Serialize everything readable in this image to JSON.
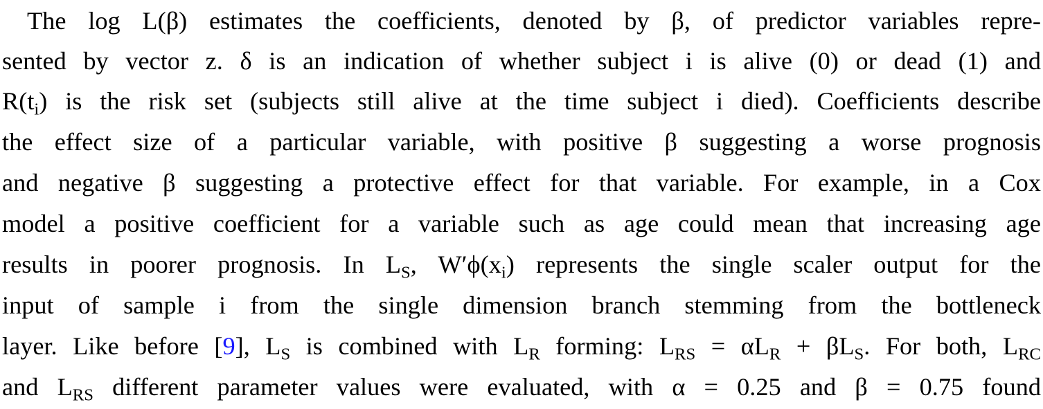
{
  "paragraph": {
    "lines": [
      "The log L(β) estimates the coefficients, denoted by β, of predictor variables repre-",
      "sented by vector z. δ is an indication of whether subject i is alive (0) or dead (1) and",
      "R(tᵢ) is the risk set (subjects still alive at the time subject i died). Coefficients describe",
      "the effect size of a particular variable, with positive β suggesting a worse prognosis",
      "and negative β suggesting a protective effect for that variable. For example, in a Cox",
      "model a positive coefficient for a variable such as age could mean that increasing age",
      "results in poorer prognosis. In L_S, W′ϕ(xᵢ) represents the single scaler output for the",
      "input of sample i from the single dimension branch stemming from the bottleneck",
      "layer. Like before [9], L_S is combined with L_R forming: L_RS = αL_R + βL_S. For both, L_RC",
      "and L_RS different parameter values were evaluated, with α = 0.25 and β = 0.75 found"
    ],
    "citation": "9",
    "colors": {
      "text": "#000000",
      "citation": "#1a1aff"
    }
  }
}
